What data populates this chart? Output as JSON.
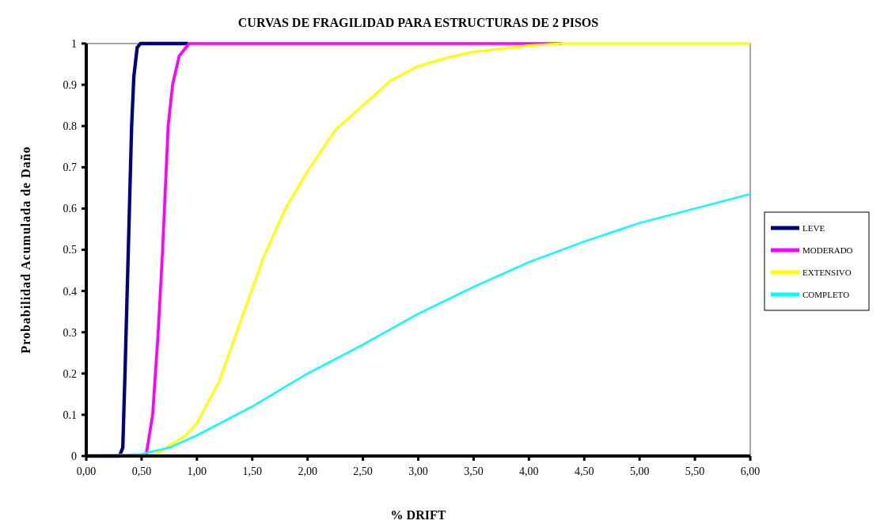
{
  "chart_data": {
    "type": "line",
    "title": "CURVAS DE FRAGILIDAD PARA ESTRUCTURAS DE 2 PISOS",
    "xlabel": "% DRIFT",
    "ylabel": "Probabilidad Acumulada de Daño",
    "xlim": [
      0,
      6
    ],
    "xticks": [
      {
        "value": 0,
        "label": "0,00"
      },
      {
        "value": 0.5,
        "label": "0,50"
      },
      {
        "value": 1,
        "label": "1,00"
      },
      {
        "value": 1.5,
        "label": "1,50"
      },
      {
        "value": 2,
        "label": "2,00"
      },
      {
        "value": 2.5,
        "label": "2,50"
      },
      {
        "value": 3,
        "label": "3,00"
      },
      {
        "value": 3.5,
        "label": "3,50"
      },
      {
        "value": 4,
        "label": "4,00"
      },
      {
        "value": 4.5,
        "label": "4,50"
      },
      {
        "value": 5,
        "label": "5,00"
      },
      {
        "value": 5.5,
        "label": "5,50"
      },
      {
        "value": 6,
        "label": "6,00"
      }
    ],
    "ylim": [
      0,
      1
    ],
    "yticks": [
      0,
      0.1,
      0.2,
      0.3,
      0.4,
      0.5,
      0.6,
      0.7,
      0.8,
      0.9,
      1
    ],
    "grid": false,
    "legend": "right",
    "marker": "none",
    "line_style": "solid",
    "series": [
      {
        "name": "LEVE",
        "color": "#000080",
        "x": [
          0,
          0.3,
          0.33,
          0.35,
          0.37,
          0.39,
          0.41,
          0.43,
          0.46,
          0.49,
          0.92
        ],
        "values": [
          0,
          0,
          0.02,
          0.2,
          0.4,
          0.6,
          0.8,
          0.92,
          0.99,
          1,
          1
        ]
      },
      {
        "name": "MODERADO",
        "color": "#ff00ff",
        "x": [
          0,
          0.54,
          0.6,
          0.65,
          0.69,
          0.74,
          0.78,
          0.84,
          0.93,
          4.3
        ],
        "values": [
          0,
          0,
          0.1,
          0.3,
          0.5,
          0.8,
          0.9,
          0.97,
          1,
          1
        ]
      },
      {
        "name": "EXTENSIVO",
        "color": "#ffff00",
        "x": [
          0,
          0.6,
          0.9,
          1.0,
          1.2,
          1.4,
          1.6,
          1.8,
          2.0,
          2.25,
          2.5,
          2.75,
          3.0,
          3.25,
          3.5,
          4.0,
          4.3,
          6.0
        ],
        "values": [
          0,
          0,
          0.05,
          0.08,
          0.18,
          0.33,
          0.48,
          0.6,
          0.69,
          0.79,
          0.85,
          0.91,
          0.945,
          0.965,
          0.98,
          0.995,
          1,
          1
        ]
      },
      {
        "name": "COMPLETO",
        "color": "#00ffff",
        "x": [
          0,
          0.5,
          0.75,
          1.0,
          1.5,
          2.0,
          2.5,
          3.0,
          3.5,
          4.0,
          4.5,
          5.0,
          5.5,
          6.0
        ],
        "values": [
          0,
          0.005,
          0.02,
          0.05,
          0.12,
          0.2,
          0.27,
          0.345,
          0.41,
          0.47,
          0.52,
          0.565,
          0.6,
          0.635
        ]
      }
    ]
  }
}
